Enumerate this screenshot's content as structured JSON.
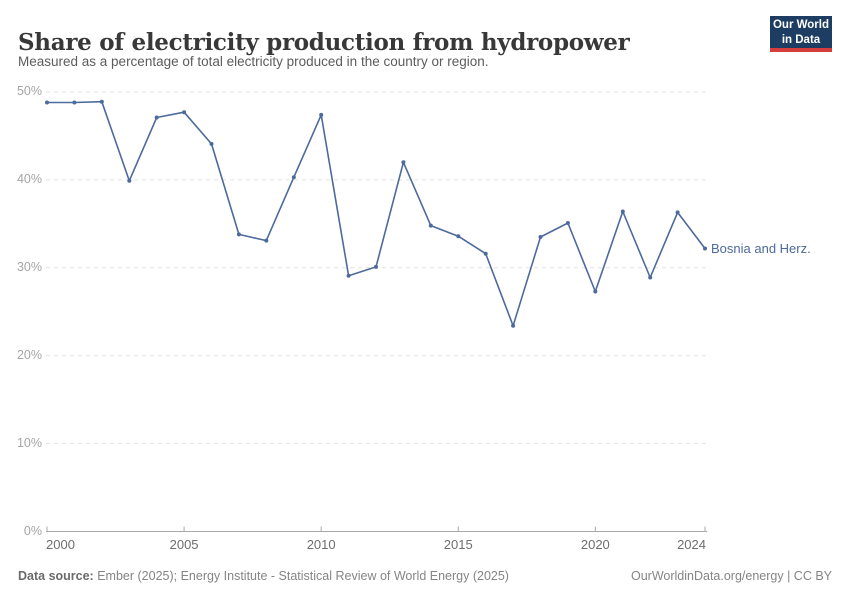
{
  "header": {
    "title": "Share of electricity production from hydropower",
    "subtitle": "Measured as a percentage of total electricity produced in the country or region.",
    "logo": {
      "line1": "Our World",
      "line2": "in Data",
      "bg_color": "#1d3d63",
      "accent_color": "#d63e3e"
    }
  },
  "chart_data": {
    "type": "line",
    "title": "Share of electricity production from hydropower",
    "subtitle": "Measured as a percentage of total electricity produced in the country or region.",
    "xlabel": "",
    "ylabel": "",
    "xlim": [
      2000,
      2024
    ],
    "ylim": [
      0,
      50
    ],
    "grid": "horizontal-dashed",
    "legend_position": "end-of-line-label",
    "x_ticks": [
      2000,
      2005,
      2010,
      2015,
      2020,
      2024
    ],
    "y_ticks": [
      0,
      10,
      20,
      30,
      40,
      50
    ],
    "y_tick_suffix": "%",
    "series": [
      {
        "name": "Bosnia and Herz.",
        "color": "#4C6A9C",
        "x": [
          2000,
          2001,
          2002,
          2003,
          2004,
          2005,
          2006,
          2007,
          2008,
          2009,
          2010,
          2011,
          2012,
          2013,
          2014,
          2015,
          2016,
          2017,
          2018,
          2019,
          2020,
          2021,
          2022,
          2023,
          2024
        ],
        "values": [
          48.8,
          48.8,
          48.9,
          39.9,
          47.1,
          47.7,
          44.1,
          33.8,
          33.1,
          40.3,
          47.4,
          29.1,
          30.1,
          42.0,
          34.8,
          33.6,
          31.6,
          23.4,
          33.5,
          35.1,
          27.3,
          36.4,
          28.9,
          36.3,
          32.2
        ]
      }
    ],
    "colors": {
      "gridline": "#e2e2e2",
      "axis": "#a8a8a8",
      "y_tick_label": "#a5a5a5",
      "x_tick_label": "#6e6e6e"
    }
  },
  "footer": {
    "datasource_label": "Data source:",
    "datasource_text": " Ember (2025); Energy Institute - Statistical Review of World Energy (2025)",
    "link_text": "OurWorldinData.org/energy | CC BY"
  }
}
